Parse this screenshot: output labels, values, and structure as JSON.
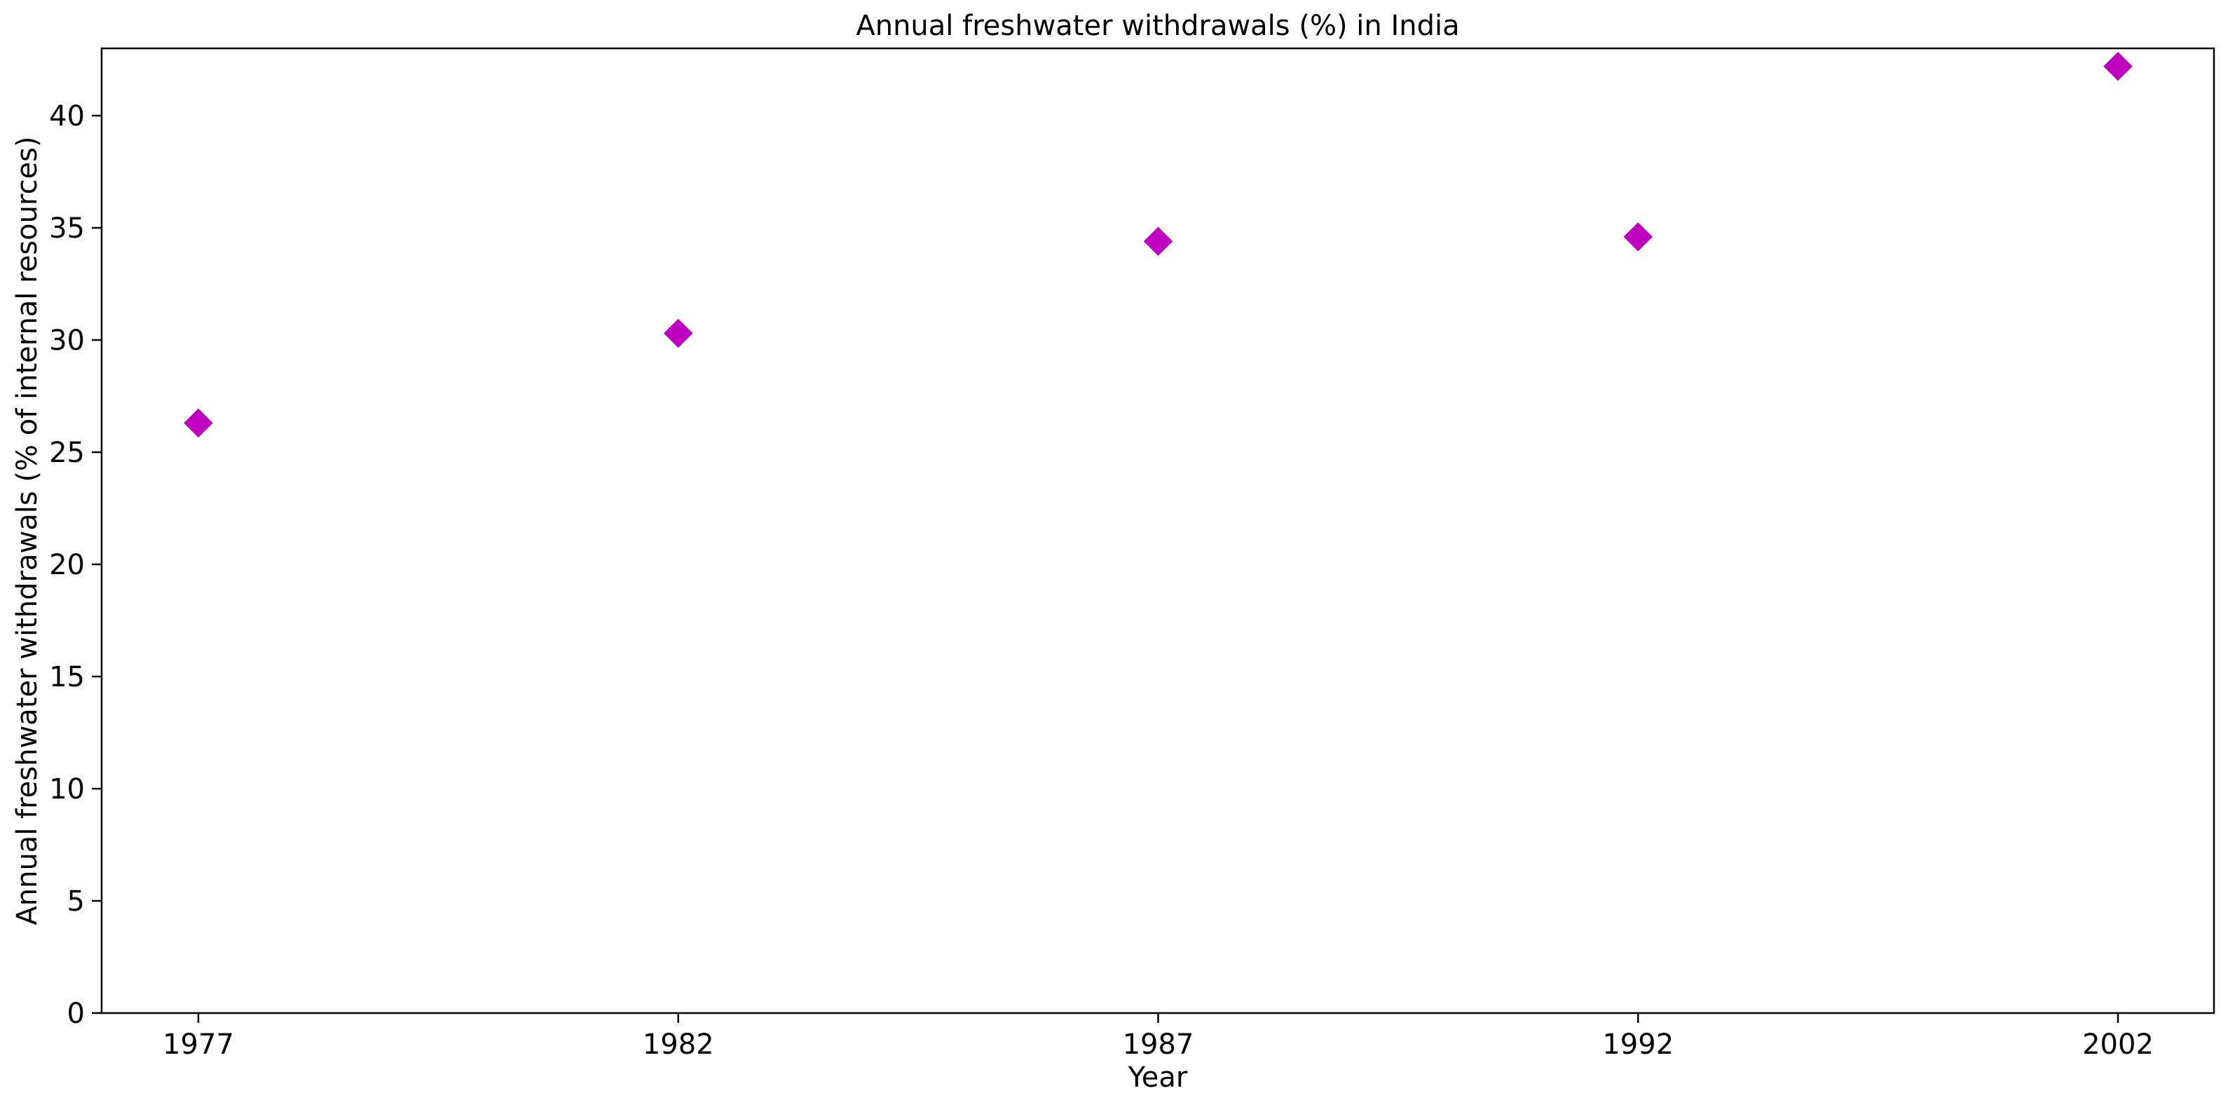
{
  "chart_data": {
    "type": "scatter",
    "title": "Annual freshwater withdrawals (%) in India",
    "xlabel": "Year",
    "ylabel": "Annual freshwater withdrawals (% of internal resources)",
    "categories": [
      "1977",
      "1982",
      "1987",
      "1992",
      "2002"
    ],
    "values": [
      26.3,
      30.3,
      34.4,
      34.6,
      42.2
    ],
    "yticks": [
      0,
      5,
      10,
      15,
      20,
      25,
      30,
      35,
      40
    ],
    "ylim": [
      0,
      43
    ],
    "grid": false,
    "legend": "none",
    "marker": "diamond",
    "color": "#bf00bf"
  }
}
